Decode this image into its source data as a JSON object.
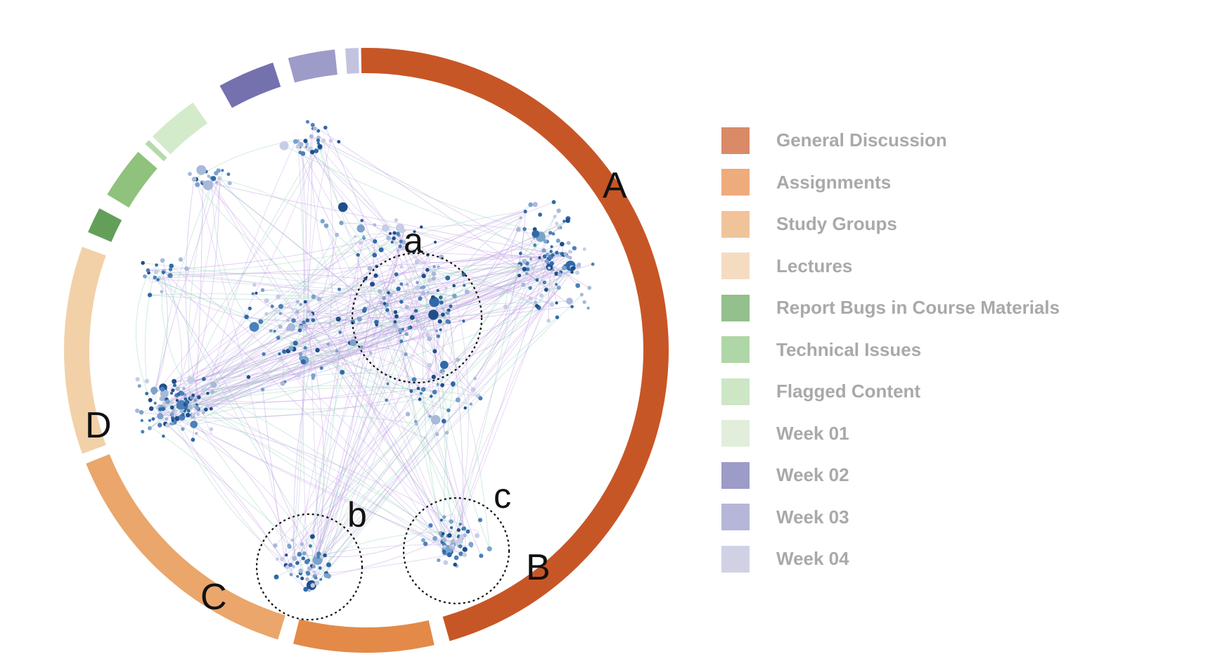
{
  "legend": [
    {
      "label": "General Discussion",
      "color": "#d98a66"
    },
    {
      "label": "Assignments",
      "color": "#eeab7c"
    },
    {
      "label": "Study Groups",
      "color": "#f1c39b"
    },
    {
      "label": "Lectures",
      "color": "#f5dcc0"
    },
    {
      "label": "Report Bugs in Course Materials",
      "color": "#93c08c"
    },
    {
      "label": "Technical Issues",
      "color": "#afd6a6"
    },
    {
      "label": "Flagged Content",
      "color": "#cde6c5"
    },
    {
      "label": "Week 01",
      "color": "#e1eedb"
    },
    {
      "label": "Week 02",
      "color": "#9d9bc8"
    },
    {
      "label": "Week 03",
      "color": "#b6b6d8"
    },
    {
      "label": "Week 04",
      "color": "#d1d1e6"
    }
  ],
  "ring_segments": [
    {
      "name": "general-discussion",
      "color": "#c75626"
    },
    {
      "name": "assignments",
      "color": "#e38a49"
    },
    {
      "name": "study-groups",
      "color": "#eaa66b"
    },
    {
      "name": "lectures",
      "color": "#f2d1a8"
    },
    {
      "name": "report-bugs",
      "color": "#649f5a"
    },
    {
      "name": "technical-issues",
      "color": "#8ec27d"
    },
    {
      "name": "flagged-content",
      "color": "#b5dba9"
    },
    {
      "name": "week-01",
      "color": "#d4ebcb"
    },
    {
      "name": "week-02",
      "color": "#7571ae"
    },
    {
      "name": "week-03",
      "color": "#9d9bc8"
    },
    {
      "name": "week-04",
      "color": "#c3c3e0"
    }
  ],
  "region_labels": {
    "A": "A",
    "B": "B",
    "C": "C",
    "D": "D"
  },
  "cluster_labels": {
    "a": "a",
    "b": "b",
    "c": "c"
  },
  "node_colors": [
    "#1f4e8a",
    "#2f6aa8",
    "#4a80b8",
    "#7aa3cc",
    "#a8b9d9",
    "#c6cde6"
  ],
  "edge_colors": [
    "#b58fe0",
    "#8fcfb5",
    "#c8a6ea"
  ]
}
